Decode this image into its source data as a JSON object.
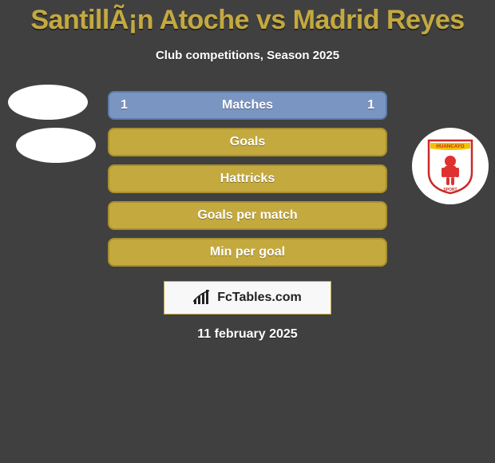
{
  "title": "SantillÃ¡n Atoche vs Madrid Reyes",
  "subtitle": "Club competitions, Season 2025",
  "date": "11 february 2025",
  "attribution": "FcTables.com",
  "bars": [
    {
      "label": "Matches",
      "left": "1",
      "right": "1",
      "bg": "#7a95c1",
      "border": "#5d79a8"
    },
    {
      "label": "Goals",
      "left": "",
      "right": "",
      "bg": "#c4a93f",
      "border": "#a88f2f"
    },
    {
      "label": "Hattricks",
      "left": "",
      "right": "",
      "bg": "#c4a93f",
      "border": "#a88f2f"
    },
    {
      "label": "Goals per match",
      "left": "",
      "right": "",
      "bg": "#c4a93f",
      "border": "#a88f2f"
    },
    {
      "label": "Min per goal",
      "left": "",
      "right": "",
      "bg": "#c4a93f",
      "border": "#a88f2f"
    }
  ],
  "crest": {
    "top_text": "HUANCAYO",
    "bottom_text": "SPORT",
    "shield_fill": "#ffffff",
    "shield_border": "#c92a2a",
    "banner_fill": "#f2c200",
    "figure_fill": "#e03131"
  },
  "colors": {
    "background": "#404040",
    "accent": "#c4a93f",
    "text": "#ffffff"
  }
}
